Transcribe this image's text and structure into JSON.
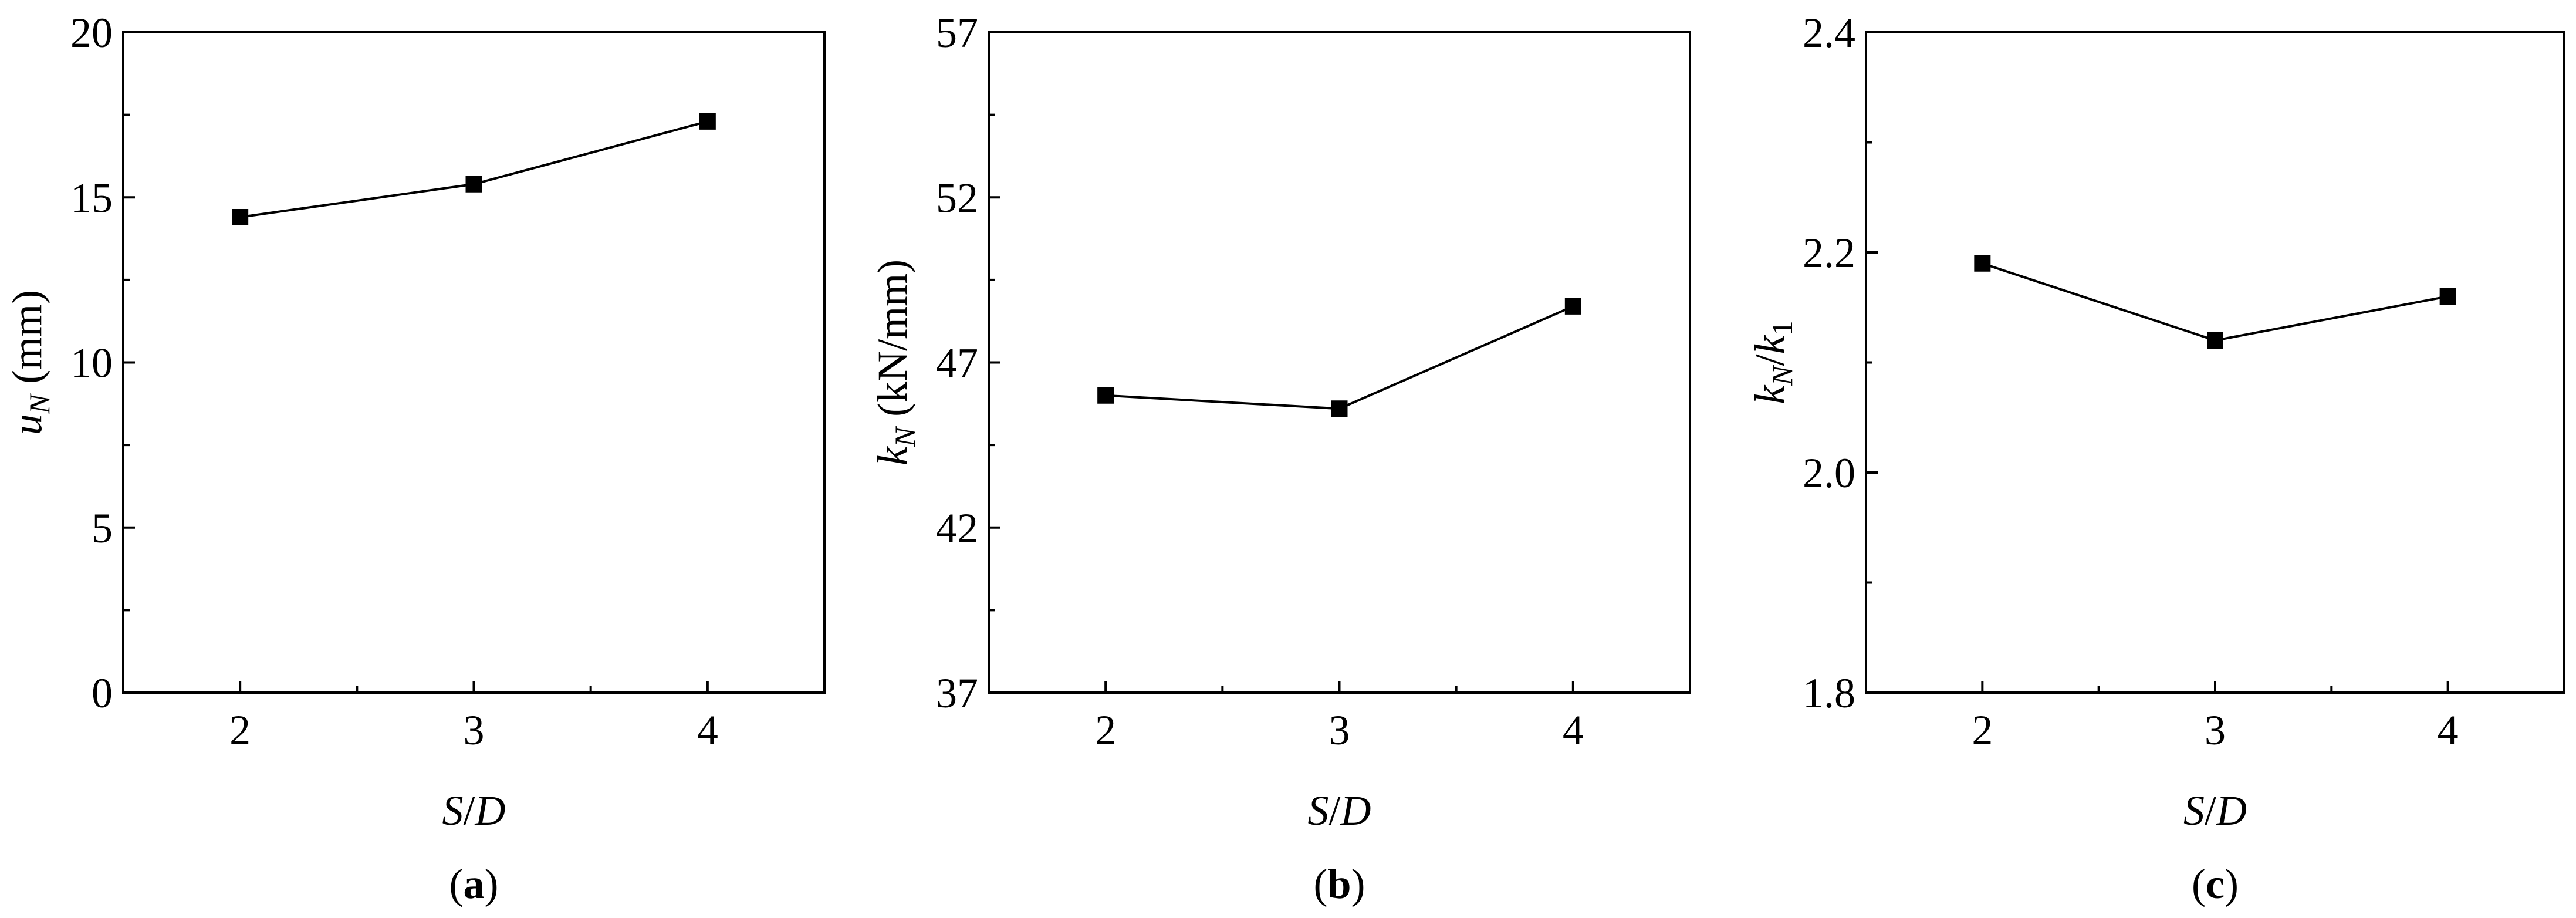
{
  "chart_data": [
    {
      "type": "line",
      "panel_label": "(a)",
      "xlabel": "S/D",
      "ylabel": "uN (mm)",
      "ylabel_parts": {
        "italic_main": "u",
        "italic_sub": "N",
        "suffix": " (mm)"
      },
      "x": [
        2,
        3,
        4
      ],
      "xticks": [
        "2",
        "3",
        "4"
      ],
      "xlim": [
        1.5,
        4.5
      ],
      "ylim": [
        0,
        20
      ],
      "yticks": [
        "0",
        "5",
        "10",
        "15",
        "20"
      ],
      "series": [
        {
          "values": [
            14.4,
            15.4,
            17.3
          ],
          "marker": "square",
          "color": "#000000"
        }
      ],
      "grid": false
    },
    {
      "type": "line",
      "panel_label": "(b)",
      "xlabel": "S/D",
      "ylabel": "kN (kN/mm)",
      "ylabel_parts": {
        "italic_main": "k",
        "italic_sub": "N",
        "suffix": " (kN/mm)"
      },
      "x": [
        2,
        3,
        4
      ],
      "xticks": [
        "2",
        "3",
        "4"
      ],
      "xlim": [
        1.5,
        4.5
      ],
      "ylim": [
        37,
        57
      ],
      "yticks": [
        "37",
        "42",
        "47",
        "52",
        "57"
      ],
      "series": [
        {
          "values": [
            46.0,
            45.6,
            48.7
          ],
          "marker": "square",
          "color": "#000000"
        }
      ],
      "grid": false
    },
    {
      "type": "line",
      "panel_label": "(c)",
      "xlabel": "S/D",
      "ylabel": "kN/k1",
      "ylabel_parts": {
        "italic_main": "k",
        "italic_sub": "N",
        "slash": "/",
        "italic_main2": "k",
        "italic_sub2": "1"
      },
      "x": [
        2,
        3,
        4
      ],
      "xticks": [
        "2",
        "3",
        "4"
      ],
      "xlim": [
        1.5,
        4.5
      ],
      "ylim": [
        1.8,
        2.4
      ],
      "yticks": [
        "1.8",
        "2.0",
        "2.2",
        "2.4"
      ],
      "series": [
        {
          "values": [
            2.19,
            2.12,
            2.16
          ],
          "marker": "square",
          "color": "#000000"
        }
      ],
      "grid": false
    }
  ]
}
